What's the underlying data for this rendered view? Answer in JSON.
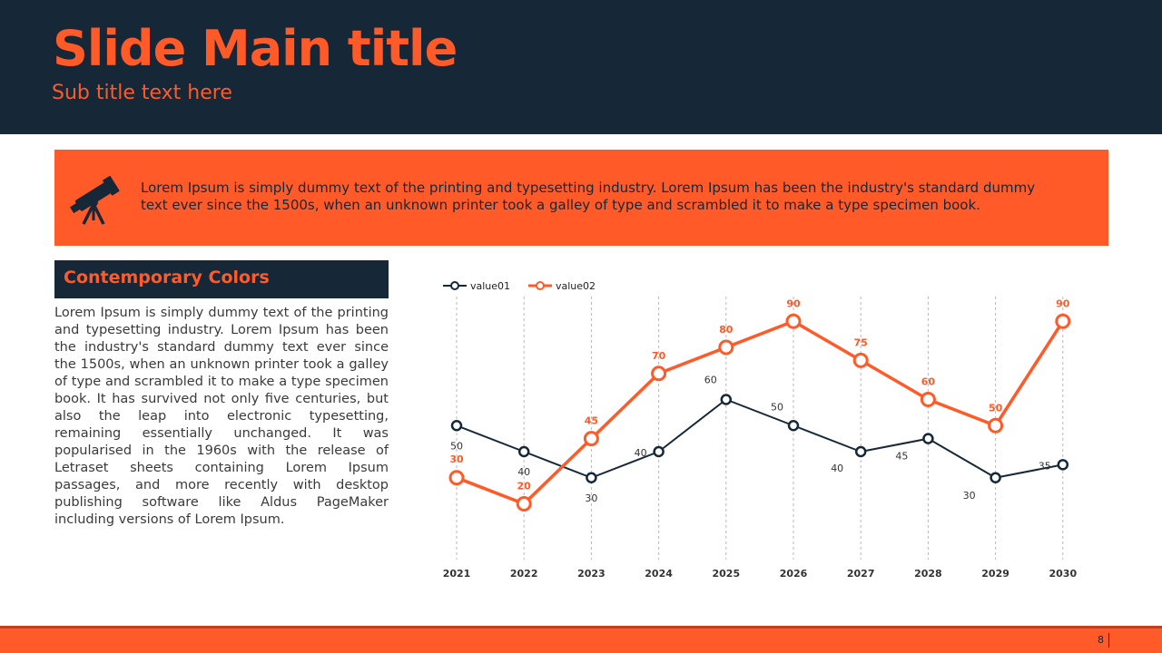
{
  "header": {
    "title": "Slide Main title",
    "subtitle": "Sub title text here"
  },
  "banner": {
    "icon": "telescope-icon",
    "text": "Lorem Ipsum is simply dummy text of the printing and typesetting industry. Lorem Ipsum has been the industry's standard dummy text ever since the 1500s, when an unknown printer took a galley of type and scrambled it to make a type specimen book."
  },
  "section": {
    "heading": "Contemporary Colors",
    "body": "Lorem Ipsum is simply dummy text of the printing and typesetting industry. Lorem Ipsum has been the industry's standard dummy text ever since the 1500s, when an unknown printer took a galley of type and scrambled it to make a type specimen book. It has survived not only five centuries, but also the leap into electronic typesetting, remaining essentially unchanged. It was popularised in the 1960s with the release of Letraset sheets containing Lorem Ipsum passages, and more recently with desktop publishing software like Aldus PageMaker including versions of Lorem Ipsum."
  },
  "footer": {
    "page_number": "8"
  },
  "colors": {
    "navy": "#162838",
    "orange": "#FF5A28"
  },
  "chart_data": {
    "type": "line",
    "categories": [
      "2021",
      "2022",
      "2023",
      "2024",
      "2025",
      "2026",
      "2027",
      "2028",
      "2029",
      "2030"
    ],
    "series": [
      {
        "name": "value01",
        "values": [
          50,
          40,
          30,
          40,
          60,
          50,
          40,
          45,
          30,
          35
        ],
        "color": "#162838"
      },
      {
        "name": "value02",
        "values": [
          30,
          20,
          45,
          70,
          80,
          90,
          75,
          60,
          50,
          90
        ],
        "color": "#FF5A28"
      }
    ],
    "legend": "top-left",
    "ylim": [
      0,
      100
    ],
    "grid": "vertical dashed",
    "data_labels": true
  }
}
